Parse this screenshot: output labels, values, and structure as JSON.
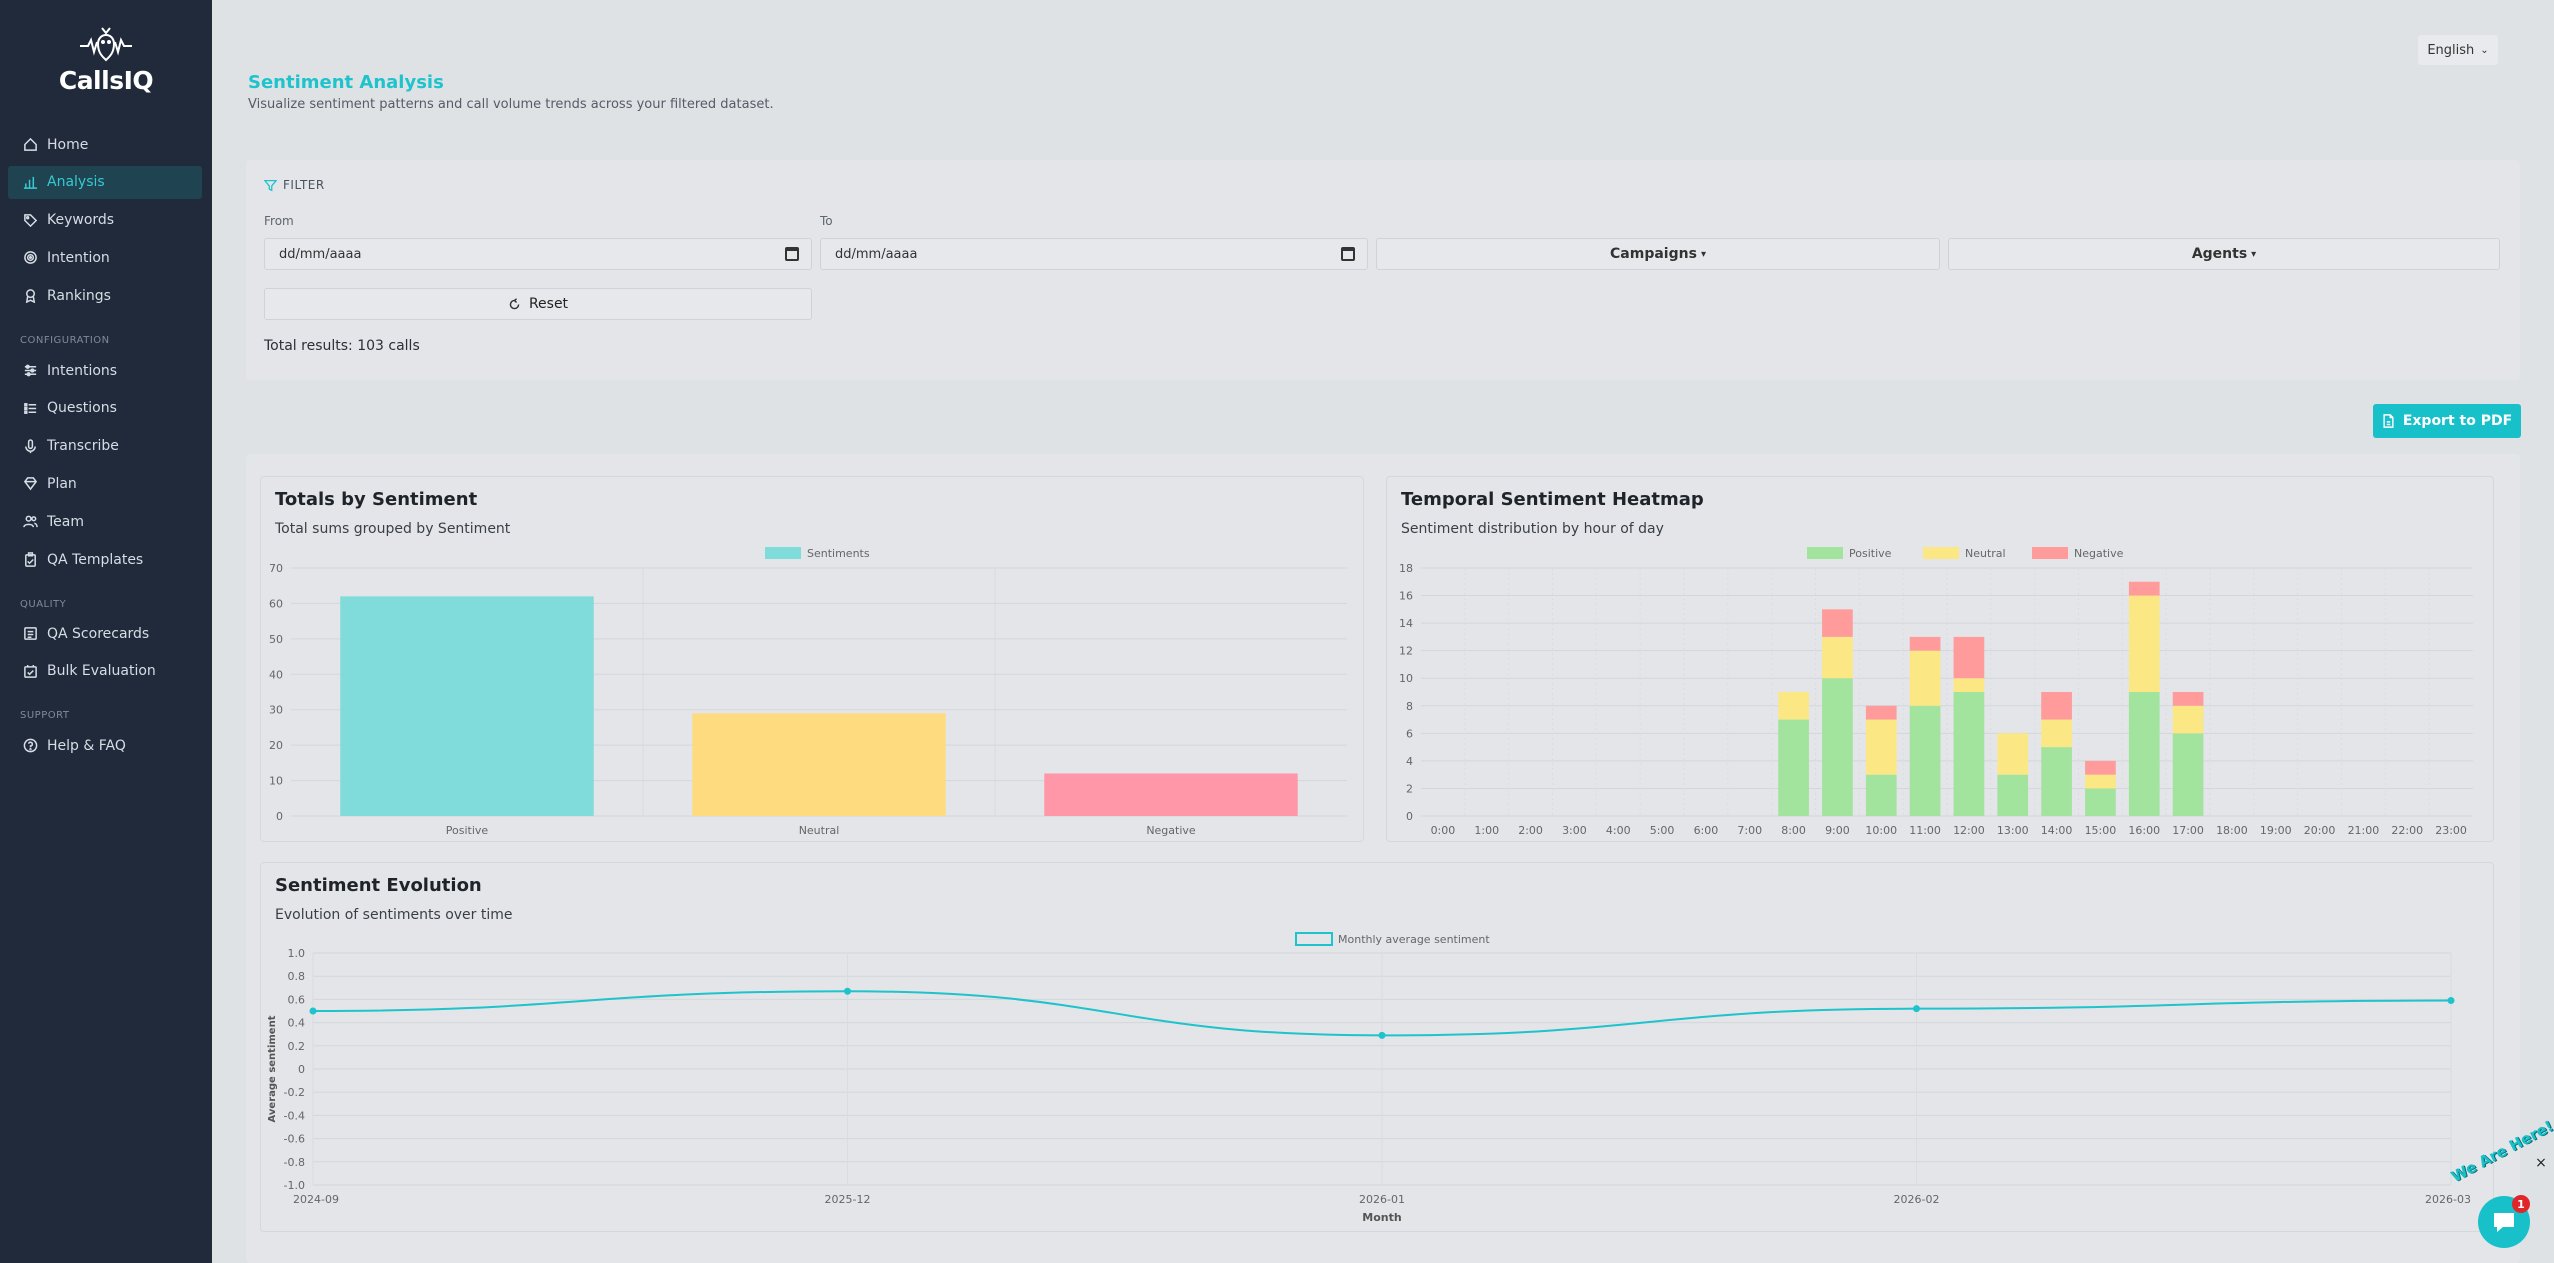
{
  "app": {
    "name": "CallsIQ"
  },
  "sidebar": {
    "items": [
      {
        "key": "home",
        "label": "Home",
        "icon": "home-icon",
        "active": false
      },
      {
        "key": "analysis",
        "label": "Analysis",
        "icon": "bar-chart-icon",
        "active": true
      },
      {
        "key": "keywords",
        "label": "Keywords",
        "icon": "tag-icon",
        "active": false
      },
      {
        "key": "intention",
        "label": "Intention",
        "icon": "target-icon",
        "active": false
      },
      {
        "key": "rankings",
        "label": "Rankings",
        "icon": "award-icon",
        "active": false
      }
    ],
    "config_title": "CONFIGURATION",
    "config_items": [
      {
        "key": "intentions",
        "label": "Intentions",
        "icon": "sliders-icon"
      },
      {
        "key": "questions",
        "label": "Questions",
        "icon": "list-icon"
      },
      {
        "key": "transcribe",
        "label": "Transcribe",
        "icon": "microphone-icon"
      },
      {
        "key": "plan",
        "label": "Plan",
        "icon": "diamond-icon"
      },
      {
        "key": "team",
        "label": "Team",
        "icon": "users-icon"
      },
      {
        "key": "qa_templates",
        "label": "QA Templates",
        "icon": "clipboard-icon"
      }
    ],
    "quality_title": "QUALITY",
    "quality_items": [
      {
        "key": "qa_scorecards",
        "label": "QA Scorecards",
        "icon": "scorecard-icon"
      },
      {
        "key": "bulk_evaluation",
        "label": "Bulk Evaluation",
        "icon": "bulk-icon"
      }
    ],
    "support_title": "SUPPORT",
    "support_items": [
      {
        "key": "help",
        "label": "Help & FAQ",
        "icon": "help-circle-icon"
      }
    ]
  },
  "header": {
    "language": "English",
    "title": "Sentiment Analysis",
    "subtitle": "Visualize sentiment patterns and call volume trends across your filtered dataset."
  },
  "filter": {
    "title": "FILTER",
    "from_label": "From",
    "to_label": "To",
    "from_placeholder": "dd/mm/aaaa",
    "to_placeholder": "dd/mm/aaaa",
    "campaigns_label": "Campaigns",
    "agents_label": "Agents",
    "reset_label": "Reset",
    "total_results": "Total results: 103 calls"
  },
  "export_label": "Export to PDF",
  "colors": {
    "accent": "#1ec3cc",
    "positive": "#7fdcdb",
    "neutral": "#ffdb80",
    "negative": "#ff97a8",
    "heat_positive": "#a2e39e",
    "heat_neutral": "#fbe884",
    "heat_negative": "#ff9b9b"
  },
  "chart_data": [
    {
      "type": "bar",
      "title": "Totals by Sentiment",
      "subtitle": "Total sums grouped by Sentiment",
      "categories": [
        "Positive",
        "Neutral",
        "Negative"
      ],
      "series": [
        {
          "name": "Sentiments",
          "values": [
            62,
            29,
            12
          ]
        }
      ],
      "ylim": [
        0,
        70
      ],
      "yticks": [
        0,
        10,
        20,
        30,
        40,
        50,
        60,
        70
      ],
      "legend": "top"
    },
    {
      "type": "bar",
      "stacked": true,
      "title": "Temporal Sentiment Heatmap",
      "subtitle": "Sentiment distribution by hour of day",
      "categories": [
        "0:00",
        "1:00",
        "2:00",
        "3:00",
        "4:00",
        "5:00",
        "6:00",
        "7:00",
        "8:00",
        "9:00",
        "10:00",
        "11:00",
        "12:00",
        "13:00",
        "14:00",
        "15:00",
        "16:00",
        "17:00",
        "18:00",
        "19:00",
        "20:00",
        "21:00",
        "22:00",
        "23:00"
      ],
      "series": [
        {
          "name": "Positive",
          "values": [
            0,
            0,
            0,
            0,
            0,
            0,
            0,
            0,
            7,
            10,
            3,
            8,
            9,
            3,
            5,
            2,
            9,
            6,
            0,
            0,
            0,
            0,
            0,
            0
          ]
        },
        {
          "name": "Neutral",
          "values": [
            0,
            0,
            0,
            0,
            0,
            0,
            0,
            0,
            2,
            3,
            4,
            4,
            1,
            3,
            2,
            1,
            7,
            2,
            0,
            0,
            0,
            0,
            0,
            0
          ]
        },
        {
          "name": "Negative",
          "values": [
            0,
            0,
            0,
            0,
            0,
            0,
            0,
            0,
            0,
            2,
            1,
            1,
            3,
            0,
            2,
            1,
            1,
            1,
            0,
            0,
            0,
            0,
            0,
            0
          ]
        }
      ],
      "ylim": [
        0,
        18
      ],
      "yticks": [
        0,
        2,
        4,
        6,
        8,
        10,
        12,
        14,
        16,
        18
      ],
      "legend": "top"
    },
    {
      "type": "line",
      "title": "Sentiment Evolution",
      "subtitle": "Evolution of sentiments over time",
      "x": [
        "2024-09",
        "2025-12",
        "2026-01",
        "2026-02",
        "2026-03"
      ],
      "series": [
        {
          "name": "Monthly average sentiment",
          "values": [
            0.5,
            0.67,
            0.29,
            0.52,
            0.59
          ]
        }
      ],
      "xlabel": "Month",
      "ylabel": "Average sentiment",
      "ylim": [
        -1.0,
        1.0
      ],
      "yticks": [
        "1.0",
        "0.8",
        "0.6",
        "0.4",
        "0.2",
        "0",
        "-0.2",
        "-0.4",
        "-0.6",
        "-0.8",
        "-1.0"
      ],
      "legend": "top"
    }
  ],
  "chat": {
    "tagline": "We Are Here!",
    "badge": "1",
    "close": "×"
  }
}
